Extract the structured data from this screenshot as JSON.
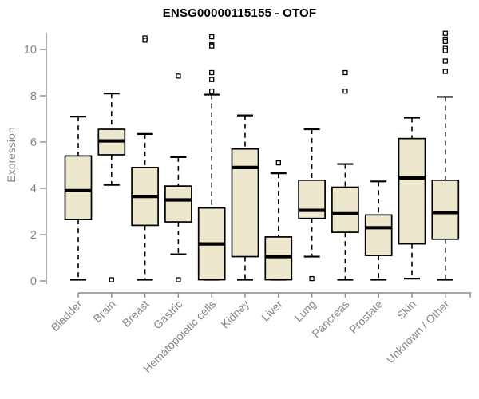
{
  "chart_data": {
    "type": "boxplot",
    "title": "ENSG00000115155 - OTOF",
    "ylabel": "Expression",
    "xlabel": "",
    "ylim": [
      0,
      10.8
    ],
    "yticks": [
      0,
      2,
      4,
      6,
      8,
      10
    ],
    "grid": false,
    "legend": "none",
    "colors": {
      "box_fill": "#EDE7CE",
      "box_stroke": "#000000",
      "median": "#000000",
      "axis": "#8a8a8a",
      "tick_text": "#858585",
      "title_text": "#000000"
    },
    "categories": [
      "Bladder",
      "Brain",
      "Breast",
      "Gastric",
      "Hematopoietic cells",
      "Kidney",
      "Liver",
      "Lung",
      "Pancreas",
      "Prostate",
      "Skin",
      "Unknown / Other"
    ],
    "boxes": [
      {
        "label": "Bladder",
        "low": 0.05,
        "q1": 2.65,
        "median": 3.9,
        "q3": 5.4,
        "high": 7.1,
        "outliers": []
      },
      {
        "label": "Brain",
        "low": 4.15,
        "q1": 5.45,
        "median": 6.05,
        "q3": 6.55,
        "high": 8.1,
        "outliers": [
          0.05
        ]
      },
      {
        "label": "Breast",
        "low": 0.05,
        "q1": 2.4,
        "median": 3.65,
        "q3": 4.9,
        "high": 6.35,
        "outliers": [
          10.5,
          10.4
        ]
      },
      {
        "label": "Gastric",
        "low": 1.15,
        "q1": 2.55,
        "median": 3.5,
        "q3": 4.1,
        "high": 5.35,
        "outliers": [
          8.85,
          0.05
        ]
      },
      {
        "label": "Hematopoietic cells",
        "low": 0.05,
        "q1": 0.05,
        "median": 1.6,
        "q3": 3.15,
        "high": 8.05,
        "outliers": [
          10.55,
          10.2,
          10.15,
          9.0,
          8.7,
          8.2
        ]
      },
      {
        "label": "Kidney",
        "low": 0.05,
        "q1": 1.05,
        "median": 4.9,
        "q3": 5.7,
        "high": 7.15,
        "outliers": []
      },
      {
        "label": "Liver",
        "low": 0.05,
        "q1": 0.05,
        "median": 1.05,
        "q3": 1.9,
        "high": 4.65,
        "outliers": [
          5.1
        ]
      },
      {
        "label": "Lung",
        "low": 1.05,
        "q1": 2.7,
        "median": 3.05,
        "q3": 4.35,
        "high": 6.55,
        "outliers": [
          0.1
        ]
      },
      {
        "label": "Pancreas",
        "low": 0.05,
        "q1": 2.1,
        "median": 2.9,
        "q3": 4.05,
        "high": 5.05,
        "outliers": [
          9.0,
          8.2
        ]
      },
      {
        "label": "Prostate",
        "low": 0.05,
        "q1": 1.1,
        "median": 2.3,
        "q3": 2.85,
        "high": 4.3,
        "outliers": []
      },
      {
        "label": "Skin",
        "low": 0.1,
        "q1": 1.6,
        "median": 4.45,
        "q3": 6.15,
        "high": 7.05,
        "outliers": []
      },
      {
        "label": "Unknown / Other",
        "low": 0.05,
        "q1": 1.8,
        "median": 2.95,
        "q3": 4.35,
        "high": 7.95,
        "outliers": [
          10.7,
          10.45,
          10.35,
          10.05,
          9.95,
          9.5,
          9.05
        ]
      }
    ]
  }
}
